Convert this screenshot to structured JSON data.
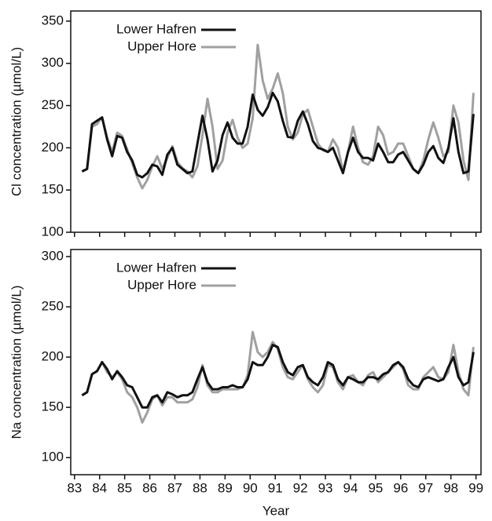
{
  "chart_data": [
    {
      "type": "line",
      "ylabel": "Cl concentration (µmol/L)",
      "xlim": [
        82.85,
        99.2
      ],
      "ylim": [
        100,
        362
      ],
      "yticks": [
        100,
        150,
        200,
        250,
        300,
        350
      ],
      "x": [
        83.3,
        83.5,
        83.7,
        83.9,
        84.1,
        84.3,
        84.5,
        84.7,
        84.9,
        85.1,
        85.3,
        85.5,
        85.7,
        85.9,
        86.1,
        86.3,
        86.5,
        86.7,
        86.9,
        87.1,
        87.3,
        87.5,
        87.7,
        87.9,
        88.1,
        88.3,
        88.5,
        88.7,
        88.9,
        89.1,
        89.3,
        89.5,
        89.7,
        89.9,
        90.1,
        90.3,
        90.5,
        90.7,
        90.9,
        91.1,
        91.3,
        91.5,
        91.7,
        91.9,
        92.1,
        92.3,
        92.5,
        92.7,
        92.9,
        93.1,
        93.3,
        93.5,
        93.7,
        93.9,
        94.1,
        94.3,
        94.5,
        94.7,
        94.9,
        95.1,
        95.3,
        95.5,
        95.7,
        95.9,
        96.1,
        96.3,
        96.5,
        96.7,
        96.9,
        97.1,
        97.3,
        97.5,
        97.7,
        97.9,
        98.1,
        98.3,
        98.5,
        98.7,
        98.9
      ],
      "series": [
        {
          "name": "Lower Hafren",
          "color": "#111111",
          "values": [
            172,
            175,
            228,
            232,
            236,
            210,
            190,
            214,
            212,
            195,
            185,
            168,
            165,
            170,
            180,
            178,
            168,
            192,
            200,
            180,
            175,
            170,
            172,
            205,
            238,
            210,
            172,
            185,
            215,
            230,
            212,
            205,
            205,
            225,
            263,
            245,
            238,
            248,
            265,
            255,
            232,
            213,
            212,
            232,
            243,
            228,
            208,
            200,
            198,
            195,
            200,
            185,
            170,
            195,
            212,
            195,
            188,
            188,
            185,
            205,
            195,
            183,
            183,
            192,
            195,
            185,
            175,
            170,
            180,
            195,
            202,
            188,
            182,
            200,
            235,
            195,
            170,
            172,
            240
          ]
        },
        {
          "name": "Upper Hore",
          "color": "#a0a0a0",
          "values": [
            172,
            175,
            225,
            228,
            236,
            212,
            195,
            218,
            214,
            198,
            182,
            165,
            152,
            162,
            178,
            190,
            175,
            188,
            202,
            183,
            176,
            172,
            165,
            178,
            215,
            258,
            225,
            175,
            185,
            218,
            233,
            212,
            200,
            205,
            235,
            322,
            280,
            258,
            270,
            288,
            265,
            225,
            210,
            218,
            240,
            245,
            225,
            205,
            197,
            195,
            210,
            200,
            172,
            195,
            225,
            200,
            183,
            180,
            190,
            225,
            215,
            192,
            195,
            205,
            205,
            190,
            175,
            170,
            185,
            210,
            230,
            212,
            190,
            195,
            250,
            230,
            185,
            162,
            265
          ]
        }
      ]
    },
    {
      "type": "line",
      "ylabel": "Na concentration (µmol/L)",
      "xlabel": "Year",
      "xlim": [
        82.85,
        99.2
      ],
      "ylim": [
        83,
        307
      ],
      "yticks": [
        100,
        150,
        200,
        250,
        300
      ],
      "xticks": [
        83,
        84,
        85,
        86,
        87,
        88,
        89,
        90,
        91,
        92,
        93,
        94,
        95,
        96,
        97,
        98,
        99
      ],
      "x": [
        83.3,
        83.5,
        83.7,
        83.9,
        84.1,
        84.3,
        84.5,
        84.7,
        84.9,
        85.1,
        85.3,
        85.5,
        85.7,
        85.9,
        86.1,
        86.3,
        86.5,
        86.7,
        86.9,
        87.1,
        87.3,
        87.5,
        87.7,
        87.9,
        88.1,
        88.3,
        88.5,
        88.7,
        88.9,
        89.1,
        89.3,
        89.5,
        89.7,
        89.9,
        90.1,
        90.3,
        90.5,
        90.7,
        90.9,
        91.1,
        91.3,
        91.5,
        91.7,
        91.9,
        92.1,
        92.3,
        92.5,
        92.7,
        92.9,
        93.1,
        93.3,
        93.5,
        93.7,
        93.9,
        94.1,
        94.3,
        94.5,
        94.7,
        94.9,
        95.1,
        95.3,
        95.5,
        95.7,
        95.9,
        96.1,
        96.3,
        96.5,
        96.7,
        96.9,
        97.1,
        97.3,
        97.5,
        97.7,
        97.9,
        98.1,
        98.3,
        98.5,
        98.7,
        98.9
      ],
      "series": [
        {
          "name": "Lower Hafren",
          "color": "#111111",
          "values": [
            162,
            165,
            183,
            186,
            195,
            188,
            178,
            186,
            180,
            172,
            170,
            160,
            150,
            150,
            160,
            162,
            155,
            165,
            163,
            160,
            162,
            162,
            165,
            178,
            190,
            175,
            168,
            168,
            170,
            170,
            172,
            170,
            170,
            178,
            195,
            192,
            192,
            200,
            212,
            210,
            195,
            185,
            182,
            190,
            192,
            180,
            175,
            172,
            180,
            195,
            192,
            178,
            172,
            180,
            178,
            175,
            175,
            180,
            180,
            178,
            183,
            185,
            192,
            195,
            190,
            178,
            172,
            170,
            178,
            180,
            178,
            176,
            178,
            190,
            200,
            180,
            172,
            175,
            205
          ]
        },
        {
          "name": "Upper Hore",
          "color": "#a0a0a0",
          "values": [
            162,
            165,
            183,
            186,
            195,
            185,
            180,
            185,
            178,
            165,
            160,
            150,
            135,
            145,
            158,
            162,
            152,
            160,
            160,
            155,
            155,
            155,
            158,
            170,
            192,
            172,
            165,
            165,
            168,
            168,
            168,
            168,
            170,
            182,
            225,
            205,
            200,
            205,
            215,
            208,
            190,
            180,
            178,
            185,
            192,
            178,
            170,
            165,
            172,
            192,
            190,
            175,
            168,
            180,
            182,
            175,
            172,
            182,
            185,
            175,
            180,
            185,
            190,
            195,
            188,
            172,
            168,
            168,
            180,
            185,
            190,
            180,
            178,
            185,
            212,
            185,
            168,
            162,
            210
          ]
        }
      ]
    }
  ]
}
